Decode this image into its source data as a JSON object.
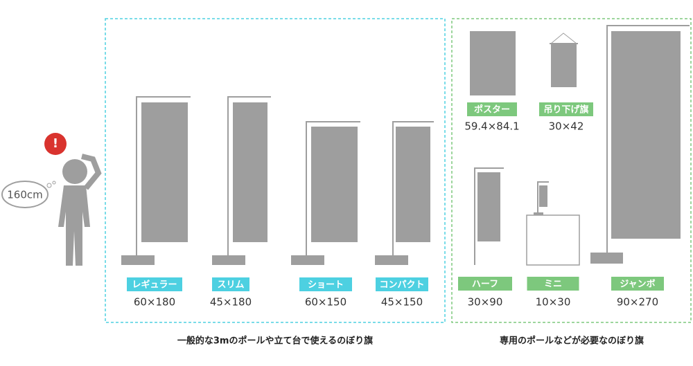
{
  "person": {
    "height": "160cm",
    "alert": "!"
  },
  "groups": [
    {
      "caption": "一般的な3mのポールや立て台で使えるのぼり旗",
      "items": [
        {
          "name": "レギュラー",
          "size": "60×180"
        },
        {
          "name": "スリム",
          "size": "45×180"
        },
        {
          "name": "ショート",
          "size": "60×150"
        },
        {
          "name": "コンパクト",
          "size": "45×150"
        }
      ]
    },
    {
      "caption": "専用のポールなどが必要なのぼり旗",
      "items": [
        {
          "name": "ポスター",
          "size": "59.4×84.1"
        },
        {
          "name": "吊り下げ旗",
          "size": "30×42"
        },
        {
          "name": "ハーフ",
          "size": "30×90"
        },
        {
          "name": "ミニ",
          "size": "10×30"
        },
        {
          "name": "ジャンボ",
          "size": "90×270"
        }
      ]
    }
  ]
}
